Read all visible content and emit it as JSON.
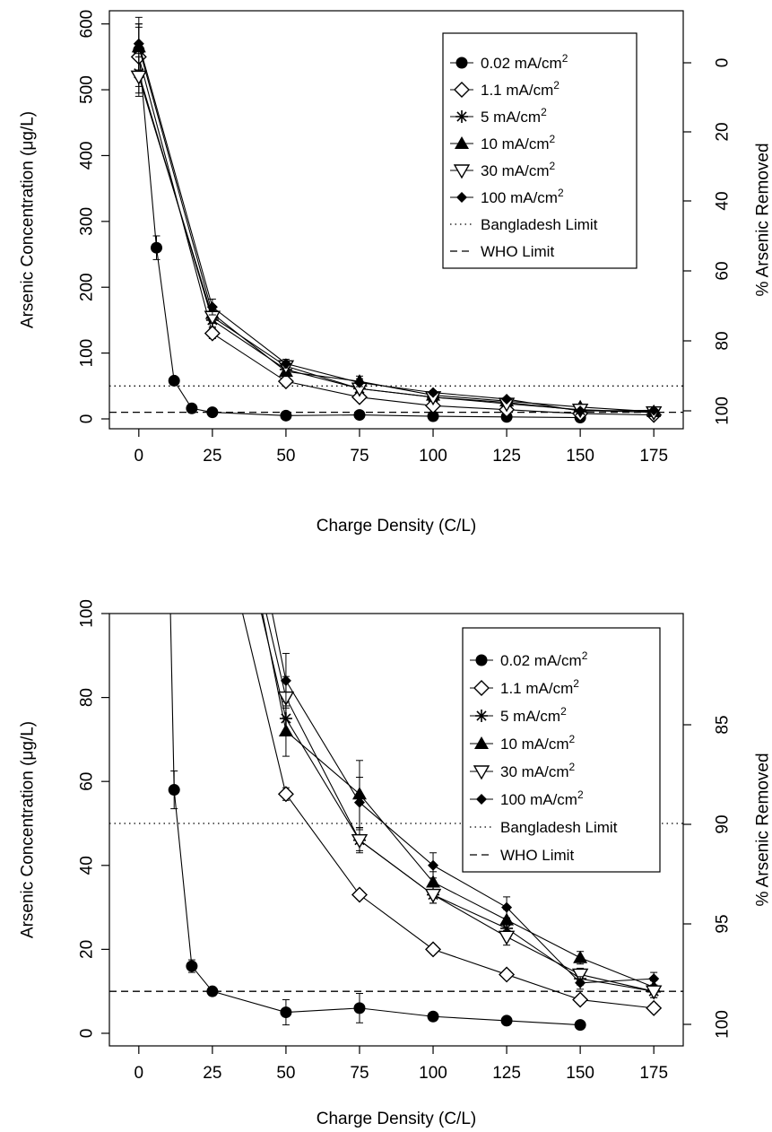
{
  "chart_data": [
    {
      "type": "line",
      "xlabel": "Charge Density (C/L)",
      "ylabel": "Arsenic Concentration (μg/L)",
      "y2label": "% Arsenic Removed",
      "xlim": [
        -10,
        185
      ],
      "ylim": [
        -15,
        620
      ],
      "xticks": [
        "0",
        "25",
        "50",
        "75",
        "100",
        "125",
        "150",
        "175"
      ],
      "yticks": [
        "0",
        "100",
        "200",
        "300",
        "400",
        "500",
        "600"
      ],
      "y2ticks": [
        "0",
        "20",
        "40",
        "60",
        "80",
        "100"
      ],
      "legend_position": "top-right",
      "legend": {
        "items": [
          {
            "name": "0.02 mA/cm",
            "sup": "2",
            "marker": "circle"
          },
          {
            "name": "1.1 mA/cm",
            "sup": "2",
            "marker": "diamond-open"
          },
          {
            "name": "5 mA/cm",
            "sup": "2",
            "marker": "asterisk"
          },
          {
            "name": "10 mA/cm",
            "sup": "2",
            "marker": "triangle"
          },
          {
            "name": "30 mA/cm",
            "sup": "2",
            "marker": "triangle-down-open"
          },
          {
            "name": "100 mA/cm",
            "sup": "2",
            "marker": "diamond-small"
          },
          {
            "name": "Bangladesh Limit",
            "line": "dotted"
          },
          {
            "name": "WHO Limit",
            "line": "dashed"
          }
        ]
      },
      "hlines": [
        {
          "y": 50,
          "style": "dotted"
        },
        {
          "y": 10,
          "style": "dashed"
        }
      ]
    },
    {
      "type": "line",
      "xlabel": "Charge Density (C/L)",
      "ylabel": "Arsenic Concentration (μg/L)",
      "y2label": "% Arsenic Removed",
      "xlim": [
        -10,
        185
      ],
      "ylim": [
        -3,
        100
      ],
      "xticks": [
        "0",
        "25",
        "50",
        "75",
        "100",
        "125",
        "150",
        "175"
      ],
      "yticks": [
        "0",
        "20",
        "40",
        "60",
        "80",
        "100"
      ],
      "y2ticks": [
        "85",
        "90",
        "95",
        "100"
      ],
      "legend_position": "top-right",
      "legend": {
        "items": [
          {
            "name": "0.02 mA/cm",
            "sup": "2",
            "marker": "circle"
          },
          {
            "name": "1.1 mA/cm",
            "sup": "2",
            "marker": "diamond-open"
          },
          {
            "name": "5 mA/cm",
            "sup": "2",
            "marker": "asterisk"
          },
          {
            "name": "10 mA/cm",
            "sup": "2",
            "marker": "triangle"
          },
          {
            "name": "30 mA/cm",
            "sup": "2",
            "marker": "triangle-down-open"
          },
          {
            "name": "100 mA/cm",
            "sup": "2",
            "marker": "diamond-small"
          },
          {
            "name": "Bangladesh Limit",
            "line": "dotted"
          },
          {
            "name": "WHO Limit",
            "line": "dashed"
          }
        ]
      },
      "hlines": [
        {
          "y": 50,
          "style": "dotted"
        },
        {
          "y": 10,
          "style": "dashed"
        }
      ]
    }
  ],
  "series": [
    {
      "marker": "circle",
      "x": [
        0,
        6,
        12,
        18,
        25,
        50,
        75,
        100,
        125,
        150
      ],
      "y": [
        560,
        260,
        58,
        16,
        10,
        5,
        6,
        4,
        3,
        2
      ],
      "err": [
        40,
        18,
        4.5,
        1.5,
        1,
        3,
        3.5,
        0,
        0,
        0
      ]
    },
    {
      "marker": "diamond-open",
      "x": [
        0,
        25,
        50,
        75,
        100,
        125,
        150,
        175
      ],
      "y": [
        550,
        130,
        57,
        33,
        20,
        14,
        8,
        6
      ],
      "err": [
        45,
        8,
        1.5,
        1,
        1,
        1,
        1,
        1
      ]
    },
    {
      "marker": "asterisk",
      "x": [
        0,
        25,
        50,
        75,
        100,
        125,
        150,
        175
      ],
      "y": [
        525,
        150,
        75,
        46,
        33,
        25,
        13,
        10
      ],
      "err": [
        30,
        10,
        4,
        2.5,
        2,
        2,
        1.5,
        1.5
      ]
    },
    {
      "marker": "triangle",
      "x": [
        0,
        25,
        50,
        75,
        100,
        125,
        150,
        175
      ],
      "y": [
        565,
        160,
        72,
        57,
        36,
        27,
        18,
        11
      ],
      "err": [
        35,
        12,
        6,
        8,
        2.5,
        2.5,
        1.5,
        1.5
      ]
    },
    {
      "marker": "triangle-down-open",
      "x": [
        0,
        25,
        50,
        75,
        100,
        125,
        150,
        175
      ],
      "y": [
        520,
        155,
        80,
        46,
        33,
        23,
        14,
        10
      ],
      "err": [
        30,
        10,
        5,
        3,
        2,
        2,
        1.5,
        1.5
      ]
    },
    {
      "marker": "diamond-small",
      "x": [
        0,
        25,
        50,
        75,
        100,
        125,
        150,
        175
      ],
      "y": [
        570,
        170,
        84,
        55,
        40,
        30,
        12,
        13
      ],
      "err": [
        40,
        12,
        6.5,
        6,
        3,
        2.5,
        1.5,
        1.5
      ]
    }
  ]
}
